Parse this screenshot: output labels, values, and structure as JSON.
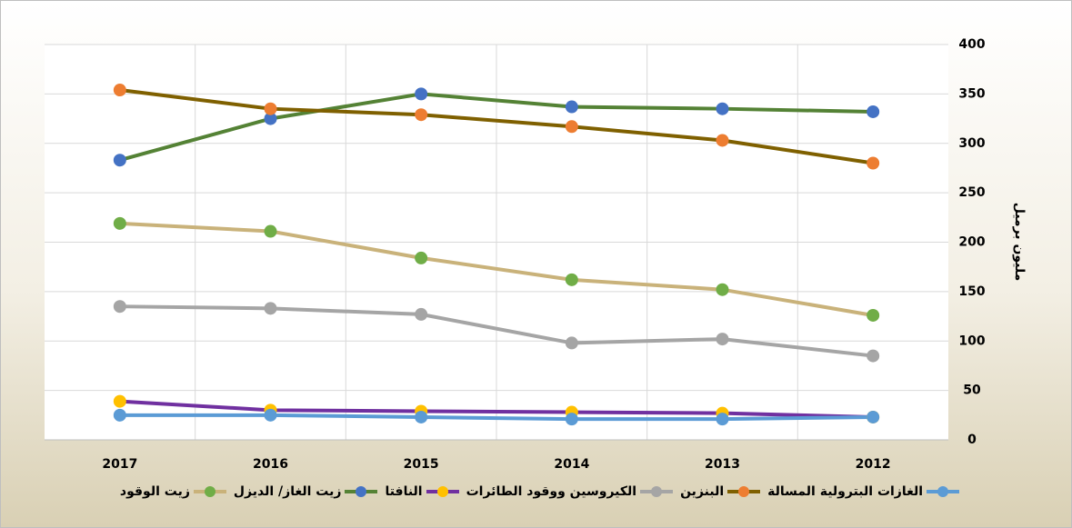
{
  "chart_data": {
    "type": "line",
    "y_label": "مليون برميل",
    "categories": [
      "2017",
      "2016",
      "2015",
      "2014",
      "2013",
      "2012"
    ],
    "series": [
      {
        "name": "زيت الوقود",
        "color": "#c9b27a",
        "marker_color": "#70ad47",
        "values": [
          219,
          211,
          184,
          162,
          152,
          126
        ]
      },
      {
        "name": "زيت الغاز/ الديزل",
        "color": "#548235",
        "marker_color": "#4472c4",
        "values": [
          283,
          325,
          350,
          337,
          335,
          332
        ]
      },
      {
        "name": "النافتا",
        "color": "#7030a0",
        "marker_color": "#ffc000",
        "values": [
          39,
          30,
          29,
          28,
          27,
          23
        ]
      },
      {
        "name": "الكيروسين ووقود الطائرات",
        "color": "#a5a5a5",
        "marker_color": "#a5a5a5",
        "values": [
          135,
          133,
          127,
          98,
          102,
          85
        ]
      },
      {
        "name": "البنزين",
        "color": "#7f6000",
        "marker_color": "#ed7d31",
        "values": [
          354,
          335,
          329,
          317,
          303,
          280
        ]
      },
      {
        "name": "الغازات البترولية المسالة",
        "color": "#5b9bd5",
        "marker_color": "#5b9bd5",
        "values": [
          25,
          25,
          23,
          21,
          21,
          23
        ]
      }
    ],
    "ylim": [
      0,
      400
    ],
    "yticks": [
      0,
      50,
      100,
      150,
      200,
      250,
      300,
      350,
      400
    ],
    "grid": true
  }
}
